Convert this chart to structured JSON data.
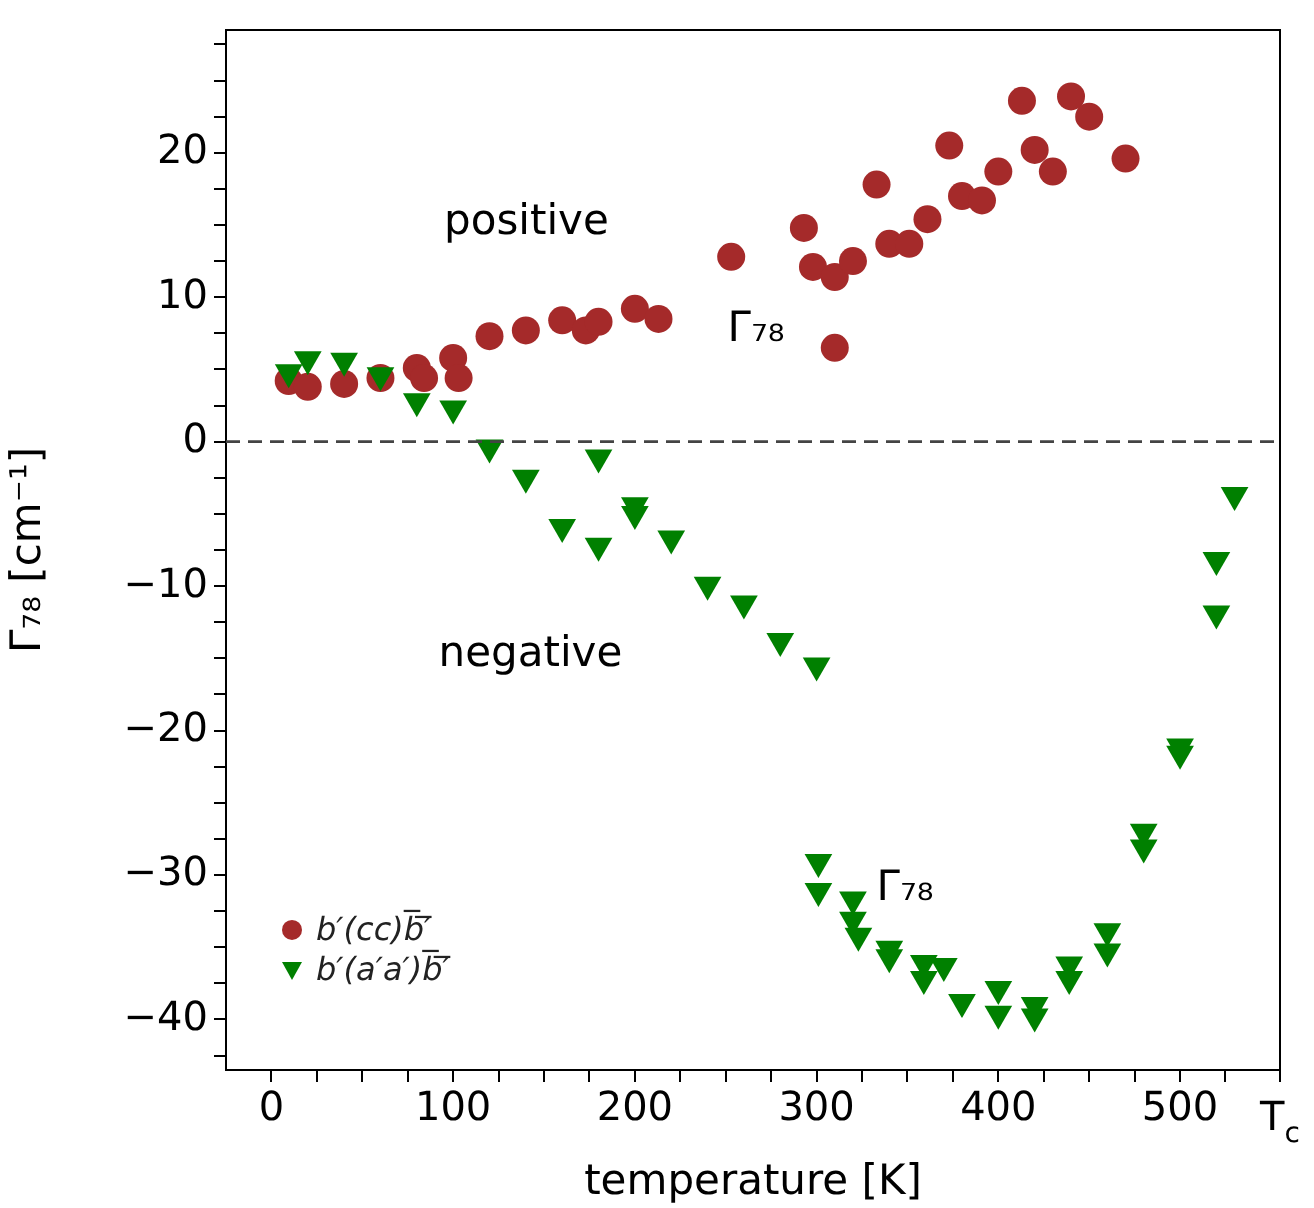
{
  "chart_data": {
    "type": "scatter",
    "xlabel": "temperature [K]",
    "ylabel": "Γ₇₈ [cm⁻¹]",
    "xlim": [
      -25,
      555
    ],
    "ylim": [
      -43.5,
      28.5
    ],
    "xticks": [
      0,
      {
        "value": 25,
        "label": null
      },
      100,
      {
        "value": 50,
        "label": null
      },
      {
        "value": 75,
        "label": null
      },
      {
        "value": 125,
        "label": null
      },
      {
        "value": 150,
        "label": null
      },
      {
        "value": 175,
        "label": null
      },
      200,
      {
        "value": 225,
        "label": null
      },
      {
        "value": 250,
        "label": null
      },
      {
        "value": 275,
        "label": null
      },
      300,
      {
        "value": 325,
        "label": null
      },
      {
        "value": 350,
        "label": null
      },
      {
        "value": 375,
        "label": null
      },
      400,
      {
        "value": 425,
        "label": null
      },
      {
        "value": 450,
        "label": null
      },
      {
        "value": 475,
        "label": null
      },
      500,
      {
        "value": 525,
        "label": null
      },
      {
        "value": 555,
        "label": "T$_{c}$"
      }
    ],
    "yticks": [
      -40,
      -30,
      -20,
      -10,
      0,
      10,
      20,
      {
        "value": -42.5,
        "label": null
      },
      {
        "value": -37.5,
        "label": null
      },
      {
        "value": -35,
        "label": null
      },
      {
        "value": -32.5,
        "label": null
      },
      {
        "value": -27.5,
        "label": null
      },
      {
        "value": -25,
        "label": null
      },
      {
        "value": -22.5,
        "label": null
      },
      {
        "value": -17.5,
        "label": null
      },
      {
        "value": -15,
        "label": null
      },
      {
        "value": -12.5,
        "label": null
      },
      {
        "value": -7.5,
        "label": null
      },
      {
        "value": -5,
        "label": null
      },
      {
        "value": -2.5,
        "label": null
      },
      {
        "value": 2.5,
        "label": null
      },
      {
        "value": 5,
        "label": null
      },
      {
        "value": 7.5,
        "label": null
      },
      {
        "value": 12.5,
        "label": null
      },
      {
        "value": 15,
        "label": null
      },
      {
        "value": 17.5,
        "label": null
      },
      {
        "value": 22.5,
        "label": null
      },
      {
        "value": 25,
        "label": null
      },
      {
        "value": 27.5,
        "label": null
      }
    ],
    "grid": false,
    "legend": "bottom left",
    "ref_lines": [
      {
        "axis": "y",
        "value": 0,
        "color": "#444444",
        "line_style": "dashed"
      }
    ],
    "annotations": [
      "positive",
      "negative",
      "Γ₇₈",
      "Γ₇₈"
    ],
    "series": [
      {
        "name": "b′(cc)b̅′̅",
        "color": "#a52a2a",
        "marker": "circle",
        "x": [
          9.5,
          20,
          40,
          60,
          80,
          84,
          100,
          103,
          120,
          140,
          160,
          173,
          180,
          200,
          213,
          253,
          293,
          298,
          310,
          320,
          310,
          333,
          340,
          351,
          361,
          373,
          380,
          391,
          400,
          413,
          420,
          430,
          440,
          450,
          470
        ],
        "values": [
          4.2,
          3.8,
          4.0,
          4.4,
          5.1,
          4.4,
          5.8,
          4.4,
          7.3,
          7.7,
          8.4,
          7.7,
          8.3,
          9.2,
          8.5,
          12.8,
          14.8,
          12.1,
          11.4,
          12.5,
          6.5,
          17.8,
          13.7,
          13.7,
          15.4,
          20.5,
          17.0,
          16.7,
          18.7,
          23.6,
          20.2,
          18.7,
          23.9,
          22.5,
          19.6
        ]
      },
      {
        "name": "b′(a′a′)b̅′̅",
        "color": "#008000",
        "marker": "triangle",
        "x": [
          9.5,
          20,
          40,
          60,
          80,
          100,
          120,
          140,
          160,
          180,
          180,
          200,
          200,
          220,
          240,
          260,
          280,
          300,
          530,
          520,
          520,
          500,
          500,
          301,
          301,
          320,
          320,
          323,
          340,
          340,
          359,
          359,
          370,
          380,
          400,
          400,
          420,
          420,
          439,
          439,
          460,
          460,
          480,
          480
        ],
        "values": [
          4.8,
          5.7,
          5.6,
          4.6,
          2.8,
          2.3,
          -0.4,
          -2.5,
          -5.9,
          -7.2,
          -1.1,
          -4.4,
          -5.0,
          -6.7,
          -9.9,
          -11.2,
          -13.8,
          -15.5,
          -3.7,
          -8.2,
          -11.9,
          -21.1,
          -21.6,
          -29.1,
          -31.1,
          -31.7,
          -33.1,
          -34.2,
          -35.1,
          -35.7,
          -36.1,
          -37.2,
          -36.3,
          -38.8,
          -37.9,
          -39.6,
          -39.0,
          -39.8,
          -36.2,
          -37.2,
          -33.9,
          -35.3,
          -27.0,
          -28.1
        ]
      }
    ]
  }
}
